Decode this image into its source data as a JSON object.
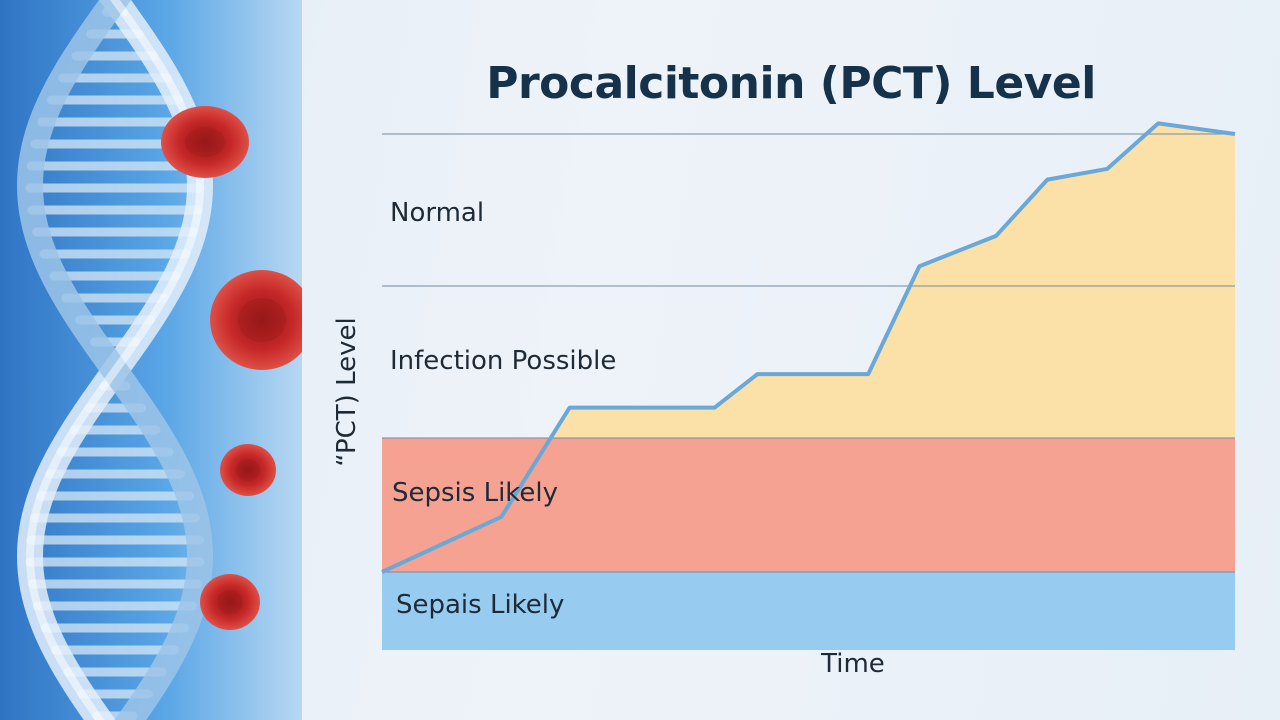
{
  "chart_data": {
    "type": "area",
    "title": "Procalcitonin (PCT) Level",
    "xlabel": "Time",
    "ylabel": "“PCT) Level",
    "ylim": [
      0,
      4
    ],
    "grid": true,
    "zones": [
      {
        "label": "Normal",
        "from": 3,
        "to": 4
      },
      {
        "label": "Infection Possible",
        "from": 2,
        "to": 3
      },
      {
        "label": "Sepsis Likely",
        "from": 1.15,
        "to": 2,
        "color": "#f59b89"
      },
      {
        "label": "Sepais Likely",
        "from": 0.6,
        "to": 1.15,
        "color": "#8fc8ef"
      }
    ],
    "series": [
      {
        "color": "#6aa8d8",
        "fill": "#fbe0a8",
        "x": [
          0,
          0.14,
          0.22,
          0.39,
          0.44,
          0.57,
          0.63,
          0.72,
          0.78,
          0.85,
          0.91,
          1.0
        ],
        "y": [
          1.15,
          1.5,
          2.2,
          2.2,
          2.42,
          2.42,
          3.13,
          3.33,
          3.7,
          3.77,
          4.07,
          4.0
        ]
      }
    ],
    "colors": {
      "title": "#15324a",
      "text": "#1e2a36",
      "gridline": "#7d8fa6",
      "line": "#6aa8d8",
      "sepsis_zone": "#f59b89",
      "lower_zone": "#8fc8ef",
      "area_fill": "#fbe0a8"
    }
  },
  "decor": {
    "side_panel_icon": "dna-helix-icon",
    "blood_cell_icon": "red-blood-cell-icon",
    "panel_color": "#4f97d8"
  }
}
